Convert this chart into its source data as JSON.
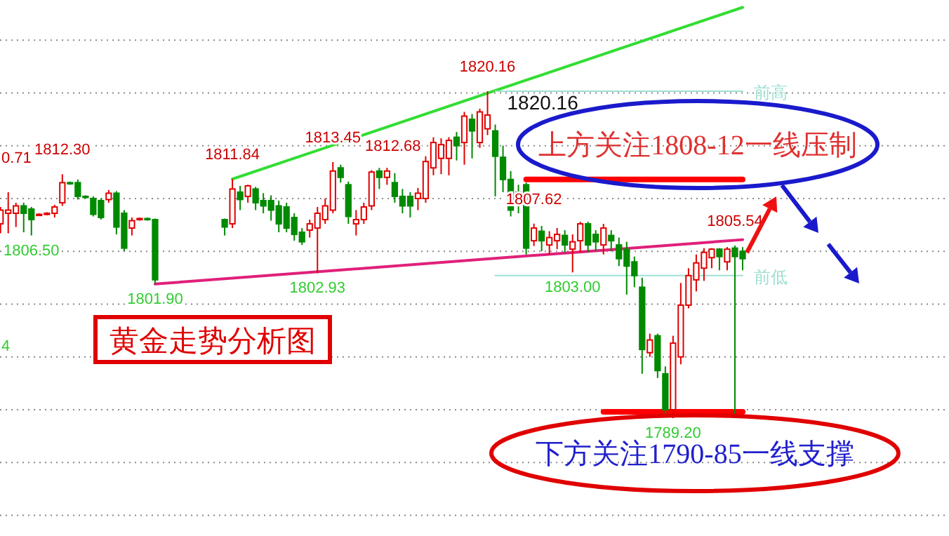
{
  "chart_data": {
    "type": "candlestick",
    "title": "黄金走势分析图",
    "categories": [
      null,
      null,
      null,
      null,
      null,
      null,
      null,
      null,
      null,
      null,
      null,
      null,
      null,
      null,
      null,
      null,
      null,
      null,
      null,
      null,
      null,
      null,
      null,
      null,
      null,
      null,
      null,
      null,
      null,
      null,
      null,
      null,
      null,
      null,
      null,
      null,
      null,
      null,
      null,
      null,
      null,
      null,
      null,
      null,
      null,
      null,
      null,
      null,
      null,
      null,
      null,
      null,
      null,
      null,
      null,
      null,
      null,
      null,
      null,
      null,
      null,
      null,
      null,
      null,
      null,
      null,
      null,
      null,
      null,
      null,
      null,
      null,
      null,
      null,
      null,
      null,
      null,
      null,
      null,
      null,
      null,
      null,
      null,
      null,
      null,
      null,
      null,
      null,
      null,
      null,
      null,
      null,
      null,
      null,
      null,
      null,
      null
    ],
    "ohlc": [
      [
        1807.6,
        1809.2,
        1806.7,
        1808.9
      ],
      [
        1808.6,
        1810.6,
        1806.7,
        1808.9
      ],
      [
        1808.6,
        1809.6,
        1807.3,
        1809.3
      ],
      [
        1809.3,
        1809.6,
        1806.8,
        1808.6
      ],
      [
        1809.0,
        1809.2,
        1806.5,
        1808.0
      ],
      [
        1808.5,
        1808.6,
        1808.4,
        1808.5
      ],
      [
        1808.5,
        1808.7,
        1808.4,
        1808.6
      ],
      [
        1808.6,
        1809.4,
        1808.2,
        1809.2
      ],
      [
        1809.6,
        1812.3,
        1809.3,
        1811.5
      ],
      [
        1811.5,
        1811.6,
        1811.3,
        1811.4
      ],
      [
        1811.5,
        1811.8,
        1809.9,
        1810.2
      ],
      [
        1810.2,
        1810.3,
        1810.0,
        1810.1
      ],
      [
        1810.0,
        1810.2,
        1808.3,
        1808.5
      ],
      [
        1809.8,
        1810.0,
        1808.0,
        1808.2
      ],
      [
        1809.9,
        1810.8,
        1809.6,
        1810.5
      ],
      [
        1810.5,
        1810.7,
        1806.6,
        1807.3
      ],
      [
        1808.6,
        1808.9,
        1805.0,
        1805.3
      ],
      [
        1807.2,
        1808.2,
        1806.5,
        1807.9
      ],
      [
        1808.0,
        1808.2,
        1807.9,
        1808.1
      ],
      [
        1808.1,
        1808.2,
        1807.9,
        1808.0
      ],
      [
        1808.0,
        1808.1,
        1801.9,
        1802.3
      ],
      null,
      null,
      null,
      null,
      null,
      null,
      null,
      null,
      [
        1808.0,
        1808.1,
        1806.5,
        1807.3
      ],
      [
        1807.6,
        1811.84,
        1807.2,
        1810.9
      ],
      [
        1810.6,
        1811.2,
        1808.9,
        1809.9
      ],
      [
        1810.2,
        1811.3,
        1809.6,
        1811.2
      ],
      [
        1810.9,
        1811.1,
        1808.9,
        1809.6
      ],
      [
        1809.8,
        1810.5,
        1808.6,
        1809.3
      ],
      [
        1809.8,
        1810.3,
        1807.9,
        1808.9
      ],
      [
        1809.3,
        1809.8,
        1806.8,
        1807.6
      ],
      [
        1809.2,
        1809.6,
        1806.8,
        1807.2
      ],
      [
        1808.2,
        1808.6,
        1806.0,
        1806.6
      ],
      [
        1806.8,
        1807.2,
        1805.6,
        1805.9
      ],
      [
        1807.0,
        1808.0,
        1806.3,
        1807.6
      ],
      [
        1807.2,
        1809.2,
        1802.93,
        1808.6
      ],
      [
        1808.0,
        1810.0,
        1807.6,
        1809.3
      ],
      [
        1808.9,
        1813.45,
        1808.6,
        1812.6
      ],
      [
        1812.9,
        1813.2,
        1811.5,
        1812.0
      ],
      [
        1811.3,
        1811.6,
        1807.6,
        1808.3
      ],
      [
        1807.6,
        1808.9,
        1806.5,
        1808.0
      ],
      [
        1808.0,
        1809.6,
        1807.6,
        1809.2
      ],
      [
        1809.3,
        1812.68,
        1808.9,
        1812.5
      ],
      [
        1812.6,
        1812.9,
        1810.9,
        1812.0
      ],
      [
        1812.0,
        1812.9,
        1811.3,
        1812.6
      ],
      [
        1811.5,
        1812.4,
        1809.6,
        1810.2
      ],
      [
        1810.2,
        1810.9,
        1808.6,
        1809.3
      ],
      [
        1810.2,
        1810.6,
        1808.2,
        1809.3
      ],
      [
        1810.0,
        1811.0,
        1808.9,
        1810.5
      ],
      [
        1810.0,
        1814.0,
        1809.6,
        1813.5
      ],
      [
        1812.9,
        1815.8,
        1812.2,
        1815.3
      ],
      [
        1813.8,
        1815.7,
        1812.3,
        1815.1
      ],
      [
        1813.8,
        1815.8,
        1812.2,
        1815.5
      ],
      [
        1815.8,
        1816.3,
        1813.6,
        1815.0
      ],
      [
        1815.3,
        1818.2,
        1813.2,
        1817.8
      ],
      [
        1817.5,
        1818.0,
        1813.8,
        1816.4
      ],
      [
        1815.3,
        1818.5,
        1814.8,
        1818.2
      ],
      [
        1816.6,
        1820.16,
        1816.0,
        1817.9
      ],
      [
        1816.4,
        1817.0,
        1810.2,
        1814.0
      ],
      [
        1813.9,
        1815.0,
        1810.6,
        1811.8
      ],
      [
        1811.8,
        1812.6,
        1808.3,
        1808.9
      ],
      [
        1810.6,
        1811.3,
        1808.6,
        1810.2
      ],
      [
        1811.3,
        1811.5,
        1804.7,
        1805.3
      ],
      [
        1806.0,
        1807.62,
        1805.5,
        1807.2
      ],
      [
        1806.9,
        1807.4,
        1805.0,
        1806.0
      ],
      [
        1805.6,
        1806.9,
        1804.7,
        1806.3
      ],
      [
        1806.0,
        1807.2,
        1805.2,
        1806.6
      ],
      [
        1806.5,
        1807.0,
        1804.9,
        1805.6
      ],
      [
        1805.2,
        1806.6,
        1803.0,
        1805.9
      ],
      [
        1806.0,
        1807.8,
        1804.9,
        1807.6
      ],
      [
        1807.6,
        1807.8,
        1804.9,
        1805.6
      ],
      [
        1806.6,
        1807.0,
        1805.0,
        1805.9
      ],
      [
        1805.6,
        1807.6,
        1804.7,
        1807.2
      ],
      [
        1806.5,
        1807.0,
        1805.0,
        1806.0
      ],
      [
        1805.6,
        1806.3,
        1803.6,
        1804.3
      ],
      [
        1805.2,
        1805.9,
        1800.9,
        1803.6
      ],
      [
        1804.0,
        1804.5,
        1801.6,
        1802.7
      ],
      [
        1801.6,
        1802.5,
        1793.4,
        1795.7
      ],
      [
        1795.4,
        1797.2,
        1795.0,
        1796.6
      ],
      [
        1797.0,
        1797.2,
        1793.0,
        1793.7
      ],
      [
        1793.4,
        1794.1,
        1789.5,
        1790.0
      ],
      [
        1790.0,
        1797.0,
        1789.2,
        1796.3
      ],
      [
        1795.0,
        1802.0,
        1794.3,
        1799.9
      ],
      [
        1799.9,
        1803.4,
        1799.6,
        1802.7
      ],
      [
        1802.3,
        1804.7,
        1801.2,
        1803.9
      ],
      [
        1803.4,
        1805.3,
        1802.2,
        1804.9
      ],
      [
        1804.4,
        1805.3,
        1803.4,
        1805.2
      ],
      [
        1805.2,
        1805.3,
        1803.2,
        1804.5
      ],
      [
        1804.0,
        1805.4,
        1803.2,
        1805.2
      ],
      [
        1805.3,
        1805.54,
        1789.3,
        1804.5
      ],
      [
        1805.0,
        1805.4,
        1803.2,
        1804.3
      ]
    ],
    "colors": [
      "#e00000",
      "#e00000",
      "#e00000",
      "#008a00",
      "#008a00",
      "#e00000",
      "#e00000",
      "#e00000",
      "#e00000",
      "#008a00",
      "#008a00",
      "#008a00",
      "#008a00",
      "#008a00",
      "#e00000",
      "#008a00",
      "#008a00",
      "#e00000",
      "#e00000",
      "#008a00",
      "#008a00",
      null,
      null,
      null,
      null,
      null,
      null,
      null,
      null,
      "#008a00",
      "#e00000",
      "#008a00",
      "#e00000",
      "#008a00",
      "#008a00",
      "#008a00",
      "#008a00",
      "#008a00",
      "#008a00",
      "#008a00",
      "#e00000",
      "#e00000",
      "#e00000",
      "#e00000",
      "#008a00",
      "#008a00",
      "#e00000",
      "#e00000",
      "#e00000",
      "#008a00",
      "#e00000",
      "#008a00",
      "#008a00",
      "#008a00",
      "#e00000",
      "#e00000",
      "#e00000",
      "#e00000",
      "#e00000",
      "#008a00",
      "#e00000",
      "#008a00",
      "#e00000",
      "#e00000",
      "#008a00",
      "#008a00",
      "#008a00",
      "#008a00",
      "#008a00",
      "#e00000",
      "#008a00",
      "#e00000",
      "#e00000",
      "#008a00",
      "#e00000",
      "#e00000",
      "#008a00",
      "#008a00",
      "#e00000",
      "#008a00",
      "#008a00",
      "#008a00",
      "#008a00",
      "#008a00",
      "#e00000",
      "#008a00",
      "#008a00",
      "#e00000",
      "#e00000",
      "#e00000",
      "#e00000",
      "#e00000",
      "#e00000",
      "#008a00",
      "#e00000",
      "#008a00",
      "#008a00"
    ],
    "series": [
      {
        "type": "line",
        "color": "#33dd33",
        "values": [
          null,
          null,
          null,
          null,
          null,
          null,
          null,
          null,
          null,
          null,
          null,
          null,
          null,
          null,
          null,
          null,
          null,
          null,
          null,
          null,
          null,
          null,
          null,
          null,
          null,
          null,
          null,
          null,
          null,
          null,
          1811.84,
          null,
          null,
          null,
          null,
          null,
          null,
          null,
          null,
          null,
          null,
          null,
          null,
          null,
          null,
          null,
          null,
          null,
          null,
          null,
          null,
          null,
          null,
          null,
          null,
          null,
          null,
          null,
          null,
          null,
          null,
          null,
          null,
          null,
          null,
          null,
          null,
          null,
          null,
          null,
          null,
          null,
          null,
          null,
          null,
          null,
          null,
          null,
          null,
          null,
          null,
          null,
          null,
          null,
          null,
          null,
          null,
          null,
          null,
          null,
          null,
          null,
          null,
          null,
          null,
          null,
          1828.1
        ]
      },
      {
        "type": "line",
        "color": "#e0207a",
        "values": [
          null,
          null,
          null,
          null,
          null,
          null,
          null,
          null,
          null,
          null,
          null,
          null,
          null,
          null,
          null,
          null,
          null,
          null,
          null,
          null,
          1801.9,
          null,
          null,
          null,
          null,
          null,
          null,
          null,
          null,
          null,
          null,
          null,
          null,
          null,
          null,
          null,
          null,
          null,
          null,
          null,
          null,
          null,
          null,
          null,
          null,
          null,
          null,
          null,
          null,
          null,
          null,
          null,
          null,
          null,
          null,
          null,
          null,
          null,
          null,
          null,
          null,
          null,
          null,
          null,
          null,
          null,
          null,
          null,
          null,
          null,
          null,
          null,
          null,
          null,
          null,
          null,
          null,
          null,
          null,
          null,
          null,
          null,
          null,
          null,
          null,
          null,
          null,
          null,
          null,
          null,
          null,
          null,
          null,
          null,
          null,
          null,
          1806.1
        ]
      },
      {
        "type": "line",
        "color": "#ff0000",
        "values": [
          null,
          null,
          null,
          null,
          null,
          null,
          null,
          null,
          null,
          null,
          null,
          null,
          null,
          null,
          null,
          null,
          null,
          null,
          null,
          null,
          null,
          null,
          null,
          null,
          null,
          null,
          null,
          null,
          null,
          null,
          null,
          null,
          null,
          null,
          null,
          null,
          null,
          null,
          null,
          null,
          null,
          null,
          null,
          null,
          null,
          null,
          null,
          null,
          null,
          null,
          null,
          null,
          null,
          null,
          null,
          null,
          null,
          null,
          null,
          null,
          null,
          null,
          null,
          null,
          null,
          null,
          null,
          null,
          1811.8,
          null,
          null,
          null,
          null,
          null,
          null,
          null,
          null,
          null,
          null,
          null,
          null,
          null,
          null,
          null,
          null,
          null,
          null,
          null,
          null,
          null,
          null,
          null,
          null,
          null,
          null,
          null,
          1811.8
        ]
      },
      {
        "type": "line",
        "color": "#ff0000",
        "values": [
          null,
          null,
          null,
          null,
          null,
          null,
          null,
          null,
          null,
          null,
          null,
          null,
          null,
          null,
          null,
          null,
          null,
          null,
          null,
          null,
          null,
          null,
          null,
          null,
          null,
          null,
          null,
          null,
          null,
          null,
          null,
          null,
          null,
          null,
          null,
          null,
          null,
          null,
          null,
          null,
          null,
          null,
          null,
          null,
          null,
          null,
          null,
          null,
          null,
          null,
          null,
          null,
          null,
          null,
          null,
          null,
          null,
          null,
          null,
          null,
          null,
          null,
          null,
          null,
          null,
          null,
          null,
          null,
          null,
          null,
          null,
          null,
          null,
          null,
          null,
          null,
          null,
          null,
          1789.8,
          null,
          null,
          null,
          null,
          null,
          null,
          null,
          null,
          null,
          null,
          null,
          null,
          null,
          null,
          null,
          null,
          null,
          1789.8
        ]
      },
      {
        "name": "前高",
        "type": "line",
        "color": "#9edfd3",
        "values": [
          null,
          null,
          null,
          null,
          null,
          null,
          null,
          null,
          null,
          null,
          null,
          null,
          null,
          null,
          null,
          null,
          null,
          null,
          null,
          null,
          null,
          null,
          null,
          null,
          null,
          null,
          null,
          null,
          null,
          null,
          null,
          null,
          null,
          null,
          null,
          null,
          null,
          null,
          null,
          null,
          null,
          null,
          null,
          null,
          null,
          null,
          null,
          null,
          null,
          null,
          null,
          null,
          null,
          null,
          null,
          null,
          null,
          null,
          null,
          null,
          null,
          null,
          null,
          null,
          1820.16,
          null,
          null,
          null,
          null,
          null,
          null,
          null,
          null,
          null,
          null,
          null,
          null,
          null,
          null,
          null,
          null,
          null,
          null,
          null,
          null,
          null,
          null,
          null,
          null,
          null,
          null,
          null,
          null,
          null,
          null,
          null,
          1820.16
        ]
      },
      {
        "name": "前低",
        "type": "line",
        "color": "#9edfd3",
        "values": [
          null,
          null,
          null,
          null,
          null,
          null,
          null,
          null,
          null,
          null,
          null,
          null,
          null,
          null,
          null,
          null,
          null,
          null,
          null,
          null,
          null,
          null,
          null,
          null,
          null,
          null,
          null,
          null,
          null,
          null,
          null,
          null,
          null,
          null,
          null,
          null,
          null,
          null,
          null,
          null,
          null,
          null,
          null,
          null,
          null,
          null,
          null,
          null,
          null,
          null,
          null,
          null,
          null,
          null,
          null,
          null,
          null,
          null,
          null,
          null,
          null,
          null,
          null,
          null,
          1802.7,
          null,
          null,
          null,
          null,
          null,
          null,
          null,
          null,
          null,
          null,
          null,
          null,
          null,
          null,
          null,
          null,
          null,
          null,
          null,
          null,
          null,
          null,
          null,
          null,
          null,
          null,
          null,
          null,
          null,
          null,
          null,
          1802.7
        ]
      }
    ],
    "yticks": [
      {
        "value": 1780,
        "label": null
      },
      {
        "value": 1785,
        "label": null
      },
      {
        "value": 1790,
        "label": null
      },
      {
        "value": 1795,
        "label": null
      },
      {
        "value": 1800,
        "label": null
      },
      {
        "value": 1805,
        "label": null
      },
      {
        "value": 1810,
        "label": null
      },
      {
        "value": 1815,
        "label": null
      },
      {
        "value": 1820,
        "label": null
      },
      {
        "value": 1825,
        "label": null
      }
    ],
    "grid": "y",
    "annotations": [
      "上方关注1808-12一线压制",
      "下方关注1790-85一线支撑",
      {
        "text": "1812.30",
        "y": 1812.3
      },
      {
        "text": "1811.84",
        "y": 1811.84
      },
      {
        "text": "1813.45",
        "y": 1813.45
      },
      {
        "text": "1812.68",
        "y": 1812.68
      },
      {
        "text": "1820.16",
        "y": 1820.16
      },
      {
        "text": "1820.16",
        "y": 1820.16
      },
      {
        "text": "1807.62",
        "y": 1807.62
      },
      {
        "text": "1805.54",
        "y": 1805.54
      },
      {
        "text": "1806.50",
        "y": 1806.5
      },
      {
        "text": "1801.90",
        "y": 1801.9
      },
      {
        "text": "1802.93",
        "y": 1802.93
      },
      {
        "text": "1803.00",
        "y": 1803.0
      },
      {
        "text": "1789.20",
        "y": 1789.2
      },
      "0.71",
      "4"
    ]
  }
}
